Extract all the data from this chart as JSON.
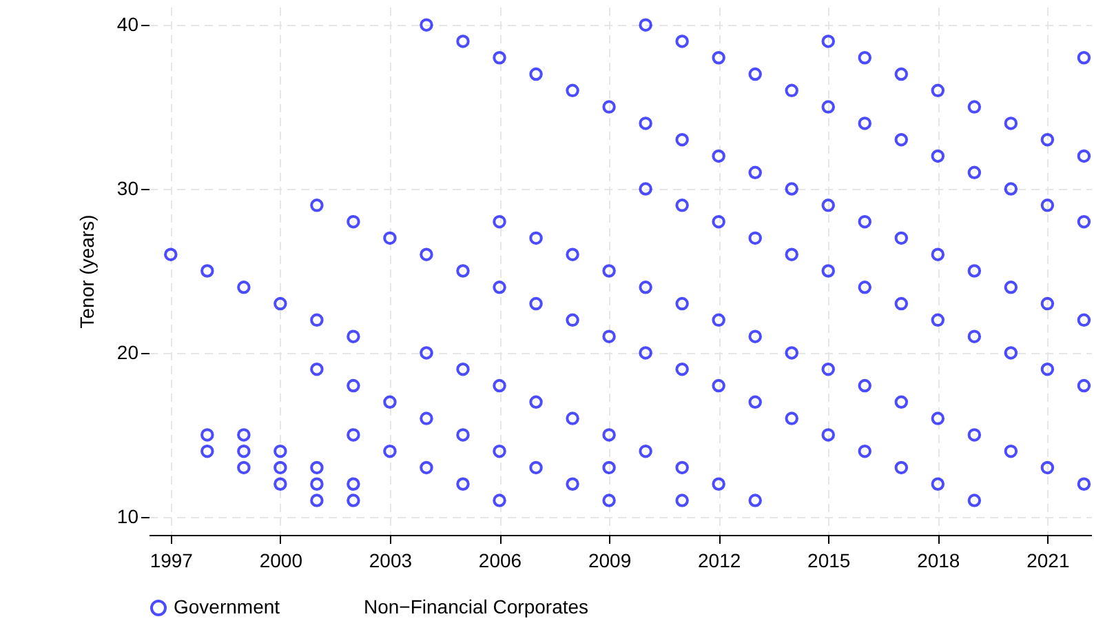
{
  "chart_data": {
    "type": "scatter",
    "ylabel": "Tenor (years)",
    "xlim": [
      1996.4,
      2022.2
    ],
    "ylim": [
      8.9,
      41.1
    ],
    "xticks": [
      1997,
      2000,
      2003,
      2006,
      2009,
      2012,
      2015,
      2018,
      2021
    ],
    "yticks": [
      10,
      20,
      30,
      40
    ],
    "grid": true,
    "legend": "bottom",
    "marker": "circle",
    "series": [
      {
        "name": "Government",
        "color": "#0000ff",
        "x": [
          1997,
          1998,
          1998,
          1998,
          1999,
          1999,
          1999,
          1999,
          2000,
          2000,
          2000,
          2000,
          2001,
          2001,
          2001,
          2001,
          2001,
          2001,
          2002,
          2002,
          2002,
          2002,
          2002,
          2002,
          2003,
          2003,
          2003,
          2004,
          2004,
          2004,
          2004,
          2004,
          2005,
          2005,
          2005,
          2005,
          2005,
          2006,
          2006,
          2006,
          2006,
          2006,
          2006,
          2007,
          2007,
          2007,
          2007,
          2007,
          2008,
          2008,
          2008,
          2008,
          2008,
          2009,
          2009,
          2009,
          2009,
          2009,
          2009,
          2010,
          2010,
          2010,
          2010,
          2010,
          2010,
          2011,
          2011,
          2011,
          2011,
          2011,
          2011,
          2011,
          2012,
          2012,
          2012,
          2012,
          2012,
          2012,
          2013,
          2013,
          2013,
          2013,
          2013,
          2013,
          2014,
          2014,
          2014,
          2014,
          2014,
          2015,
          2015,
          2015,
          2015,
          2015,
          2015,
          2016,
          2016,
          2016,
          2016,
          2016,
          2016,
          2017,
          2017,
          2017,
          2017,
          2017,
          2017,
          2018,
          2018,
          2018,
          2018,
          2018,
          2018,
          2019,
          2019,
          2019,
          2019,
          2019,
          2019,
          2020,
          2020,
          2020,
          2020,
          2020,
          2021,
          2021,
          2021,
          2021,
          2021,
          2022,
          2022,
          2022,
          2022,
          2022,
          2022
        ],
        "values": [
          26,
          25,
          15,
          14,
          24,
          15,
          14,
          13,
          23,
          14,
          13,
          12,
          29,
          22,
          19,
          13,
          12,
          11,
          28,
          21,
          18,
          15,
          12,
          11,
          27,
          17,
          14,
          40,
          26,
          20,
          16,
          13,
          39,
          25,
          19,
          15,
          12,
          38,
          28,
          24,
          18,
          14,
          11,
          37,
          27,
          23,
          17,
          13,
          36,
          26,
          22,
          16,
          12,
          35,
          25,
          21,
          15,
          13,
          11,
          40,
          34,
          30,
          24,
          20,
          14,
          39,
          33,
          29,
          23,
          19,
          13,
          11,
          38,
          32,
          28,
          22,
          18,
          12,
          37,
          31,
          27,
          21,
          17,
          11,
          36,
          30,
          26,
          20,
          16,
          39,
          35,
          29,
          25,
          19,
          15,
          38,
          34,
          28,
          24,
          18,
          14,
          37,
          33,
          27,
          23,
          17,
          13,
          36,
          32,
          26,
          22,
          16,
          12,
          35,
          31,
          25,
          21,
          15,
          11,
          34,
          30,
          24,
          20,
          14,
          33,
          29,
          23,
          19,
          13,
          38,
          32,
          28,
          22,
          18,
          12
        ]
      },
      {
        "name": "Non−Financial Corporates"
      }
    ]
  }
}
